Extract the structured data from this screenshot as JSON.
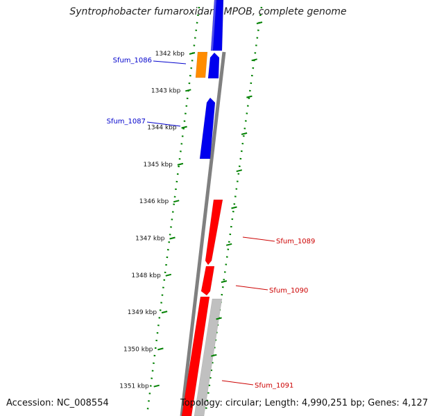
{
  "title": "Syntrophobacter fumaroxidans MPOB, complete genome",
  "footer": {
    "accession": "Accession: NC_008554",
    "topology": "Topology: circular; Length: 4,990,251 bp; Genes: 4,127"
  },
  "colors": {
    "forward_gene": "#ff0000",
    "reverse_gene": "#0000ee",
    "rna_gene": "#ff8c00",
    "other_gene": "#c0c0c0",
    "backbone": "#808080",
    "ticks": "#008000",
    "label_left": "#0000cc",
    "label_right": "#cc0000"
  },
  "scale_ticks": [
    "1342 kbp",
    "1343 kbp",
    "1344 kbp",
    "1345 kbp",
    "1346 kbp",
    "1347 kbp",
    "1348 kbp",
    "1349 kbp",
    "1350 kbp",
    "1351 kbp"
  ],
  "gene_labels": [
    {
      "label": "Sfum_1086",
      "side": "left"
    },
    {
      "label": "Sfum_1087",
      "side": "left"
    },
    {
      "label": "Sfum_1089",
      "side": "right"
    },
    {
      "label": "Sfum_1090",
      "side": "right"
    },
    {
      "label": "Sfum_1091",
      "side": "right"
    }
  ]
}
